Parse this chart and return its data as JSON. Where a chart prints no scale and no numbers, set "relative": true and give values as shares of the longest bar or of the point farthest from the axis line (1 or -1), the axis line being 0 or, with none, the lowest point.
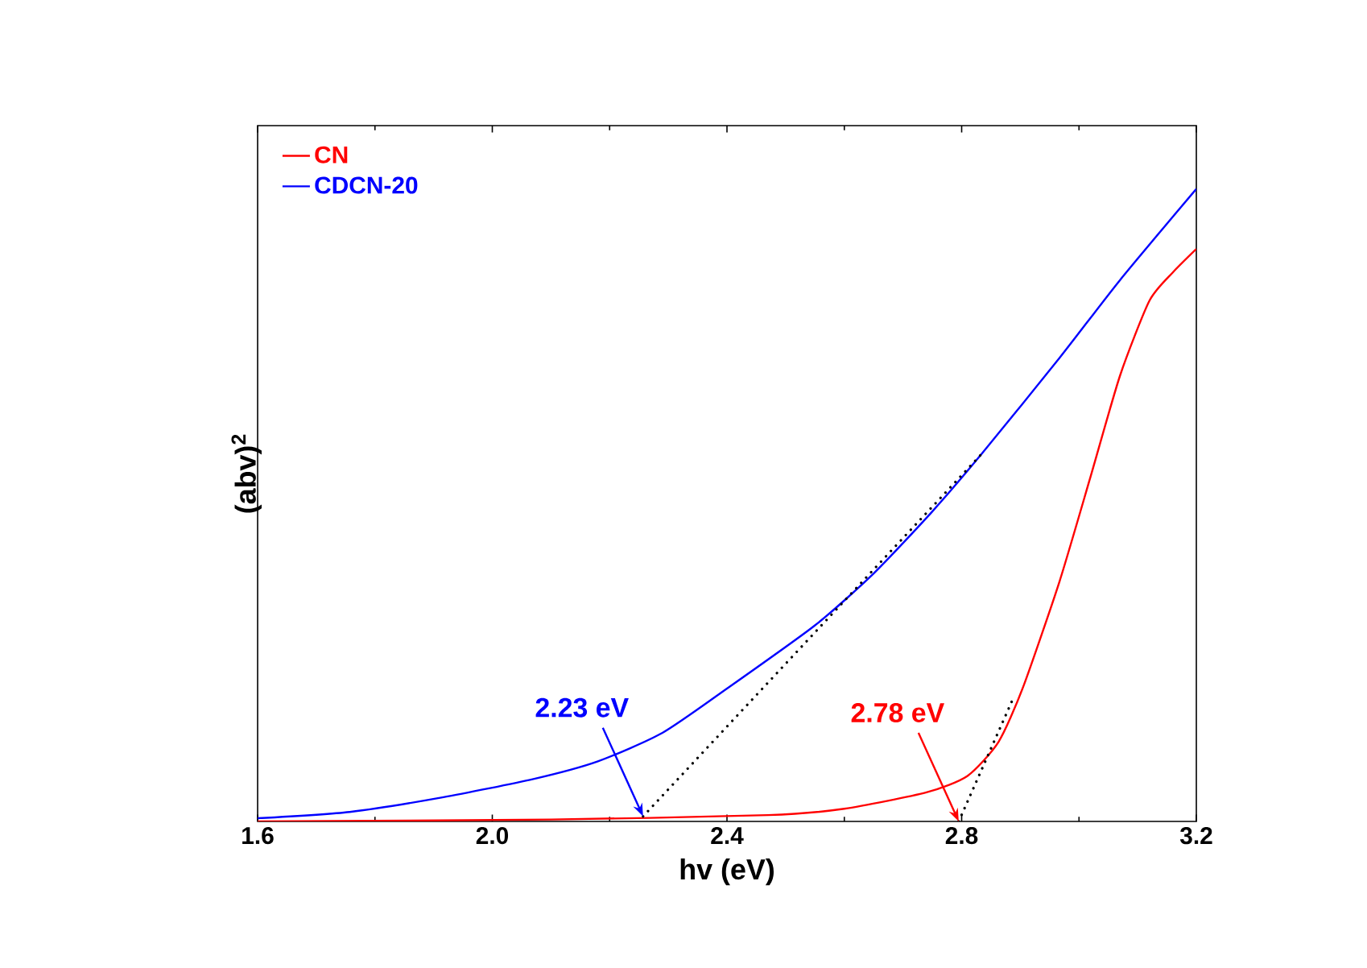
{
  "chart_data": {
    "type": "line",
    "xlabel": "hv (eV)",
    "ylabel": "(abv)$^{2}$",
    "relative": true,
    "legend": "top left",
    "marker": "none",
    "grid": false,
    "xlim": [
      1.6,
      3.2
    ],
    "xticks": [
      {
        "value": 1.6,
        "label": "1.6"
      },
      {
        "value": 2.0,
        "label": "2.0"
      },
      {
        "value": 2.4,
        "label": "2.4"
      },
      {
        "value": 2.8,
        "label": "2.8"
      },
      {
        "value": 3.2,
        "label": "3.2"
      }
    ],
    "series": [
      {
        "name": "CN",
        "color": "#ff0000",
        "line_style": "solid",
        "x": [
          1.6,
          2.1,
          2.47,
          2.6,
          2.74,
          2.81,
          2.863,
          2.905,
          2.967,
          3.02,
          3.07,
          3.12,
          3.16,
          3.2
        ],
        "values": [
          0.0,
          0.003,
          0.01,
          0.02,
          0.046,
          0.072,
          0.126,
          0.213,
          0.38,
          0.546,
          0.705,
          0.823,
          0.868,
          0.905
        ]
      },
      {
        "name": "CDCN-20",
        "color": "#0000ff",
        "line_style": "solid",
        "x": [
          1.6,
          1.757,
          1.915,
          2.07,
          2.18,
          2.29,
          2.4,
          2.55,
          2.65,
          2.75,
          2.835,
          2.967,
          3.07,
          3.2
        ],
        "values": [
          0.005,
          0.015,
          0.038,
          0.067,
          0.095,
          0.14,
          0.21,
          0.31,
          0.392,
          0.49,
          0.582,
          0.733,
          0.856,
          1.0
        ]
      },
      {
        "type": "line",
        "color": "#000000",
        "line_style": "dotted",
        "x": [
          2.795,
          2.888
        ],
        "values": [
          0.0,
          0.195
        ]
      },
      {
        "type": "line",
        "color": "#000000",
        "line_style": "dotted",
        "x": [
          2.257,
          2.835
        ],
        "values": [
          0.008,
          0.582
        ]
      }
    ],
    "annotations": [
      {
        "text": "2.78 eV",
        "x": 2.795,
        "y": 0.0
      },
      {
        "text": "2.23 eV",
        "x": 2.257,
        "y": 0.008
      }
    ]
  }
}
